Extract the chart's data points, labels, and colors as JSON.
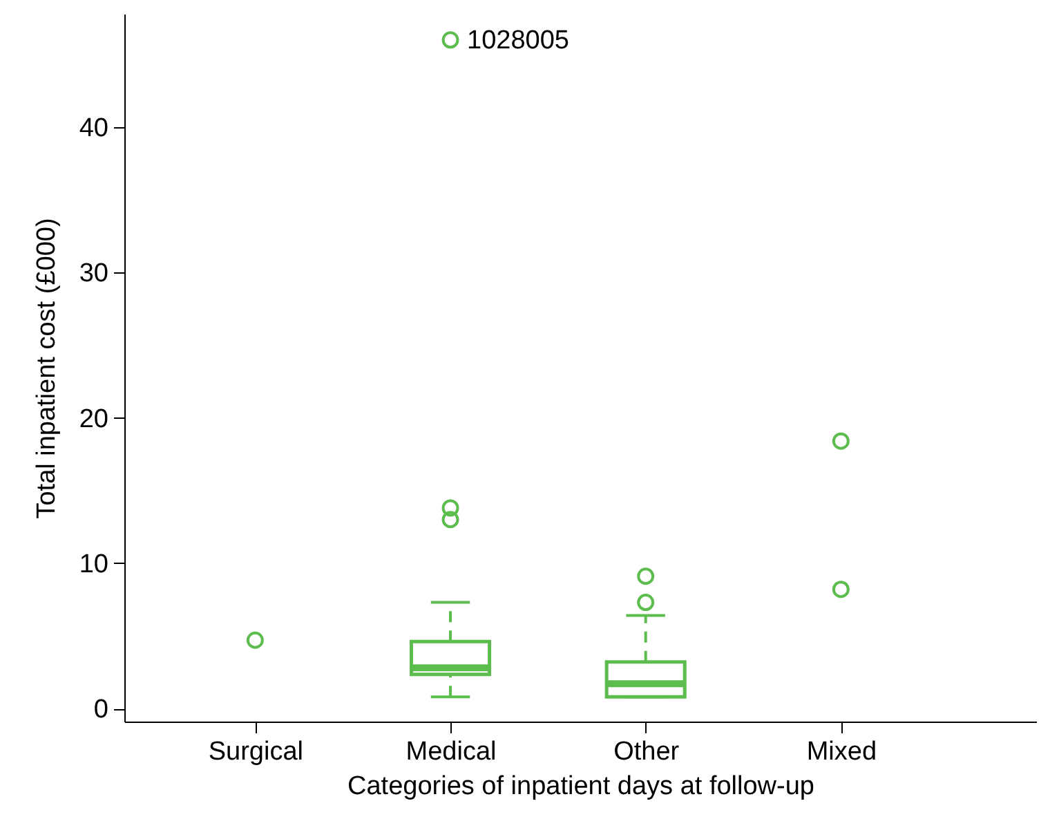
{
  "chart_data": {
    "type": "box",
    "xlabel": "Categories of inpatient days at follow-up",
    "ylabel": "Total inpatient cost (£000)",
    "categories": [
      "Surgical",
      "Medical",
      "Other",
      "Mixed"
    ],
    "ylim": [
      -0.9,
      47.8
    ],
    "yticks": [
      0,
      10,
      20,
      30,
      40
    ],
    "grid": false,
    "series": [
      {
        "type": "box",
        "color": "#5cbd4e",
        "boxes": [
          null,
          {
            "low": 0.8,
            "q1": 2.35,
            "median": 2.8,
            "q3": 4.6,
            "high": 7.3,
            "outliers": [
              13,
              13.8
            ]
          },
          {
            "low": 0.8,
            "q1": 0.8,
            "median": 1.7,
            "q3": 3.2,
            "high": 6.4,
            "outliers": [
              7.3,
              9.1
            ]
          },
          null
        ]
      },
      {
        "type": "scatter",
        "color": "#5cbd4e",
        "marker": "circle",
        "x": [
          "Surgical",
          "Medical",
          "Mixed",
          "Mixed"
        ],
        "values": [
          4.7,
          46,
          18.4,
          8.2
        ]
      }
    ],
    "annotations": [
      {
        "text": "1028005",
        "x": "Medical",
        "y": 46
      }
    ]
  }
}
